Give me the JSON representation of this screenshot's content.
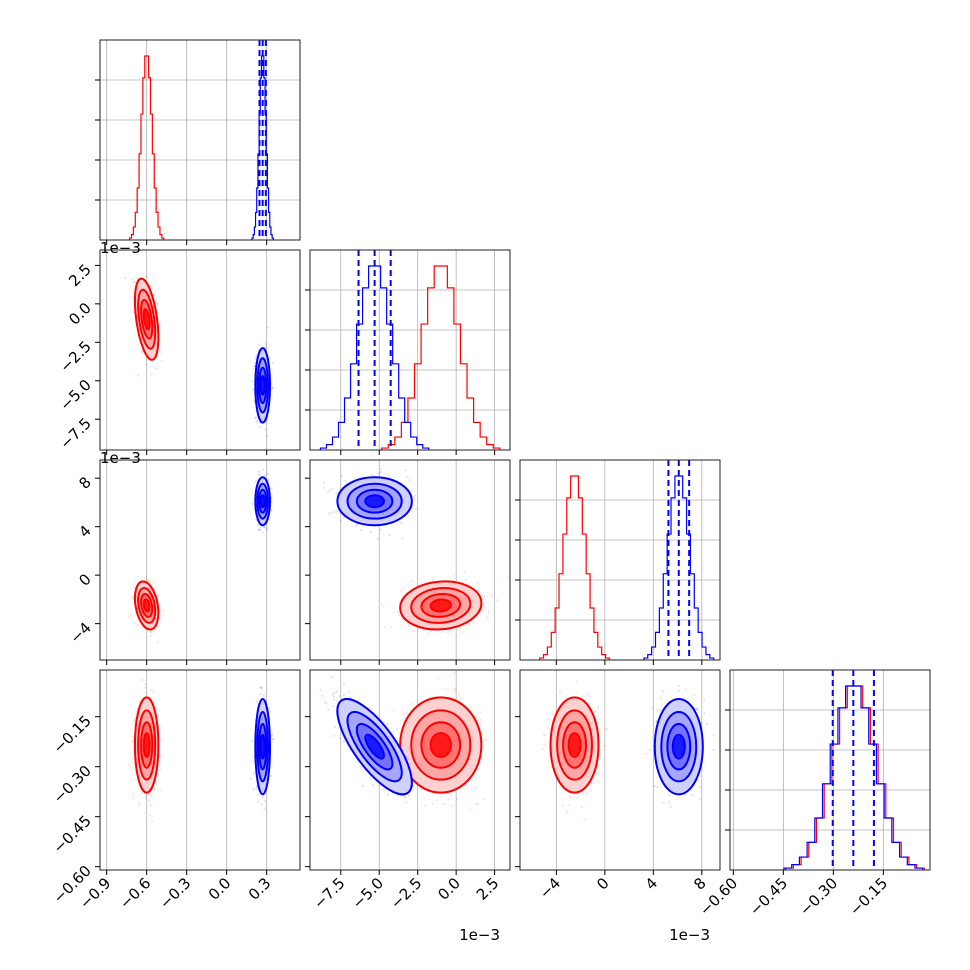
{
  "colors": {
    "red": "#ff0000",
    "blue": "#0000ff",
    "grid": "#b0b0b0"
  },
  "chart_data": {
    "type": "corner",
    "parameters": 4,
    "grid": true,
    "offset_text": "1e−3",
    "series": [
      {
        "color": "#ff0000",
        "centers": [
          -0.6,
          -0.001,
          -0.0025,
          -0.235
        ],
        "sd": [
          0.04,
          0.0012,
          0.0009,
          0.065
        ],
        "corr": {
          "0-1": -0.45,
          "0-2": -0.3,
          "0-3": 0.0,
          "1-2": 0.1,
          "1-3": 0.0,
          "2-3": 0.0
        },
        "quantile_lines": false
      },
      {
        "color": "#0000ff",
        "centers": [
          0.27,
          -0.0053,
          0.0061,
          -0.24
        ],
        "sd": [
          0.025,
          0.0011,
          0.0009,
          0.065
        ],
        "corr": {
          "0-1": 0.0,
          "0-2": 0.0,
          "0-3": 0.0,
          "1-2": 0.0,
          "1-3": -0.75,
          "2-3": 0.0
        },
        "quantile_lines": true
      }
    ],
    "axes": [
      {
        "range": [
          -0.95,
          0.55
        ],
        "ticks": [
          -0.9,
          -0.6,
          -0.3,
          0.0,
          0.3
        ],
        "tick_labels": [
          "−0.9",
          "−0.6",
          "−0.3",
          "0.0",
          "0.3"
        ],
        "offset": ""
      },
      {
        "range": [
          -0.0095,
          0.0035
        ],
        "ticks": [
          -0.0075,
          -0.005,
          -0.0025,
          0.0,
          0.0025
        ],
        "tick_labels": [
          "−7.5",
          "−5.0",
          "−2.5",
          "0.0",
          "2.5"
        ],
        "offset": "1e−3"
      },
      {
        "range": [
          -0.007,
          0.0095
        ],
        "ticks": [
          -0.004,
          0.0,
          0.004,
          0.008
        ],
        "tick_labels": [
          "−4",
          "0",
          "4",
          "8"
        ],
        "offset": "1e−3"
      },
      {
        "range": [
          -0.61,
          -0.01
        ],
        "ticks": [
          -0.6,
          -0.45,
          -0.3,
          -0.15
        ],
        "tick_labels": [
          "−0.60",
          "−0.45",
          "−0.30",
          "−0.15"
        ],
        "offset": ""
      }
    ]
  }
}
